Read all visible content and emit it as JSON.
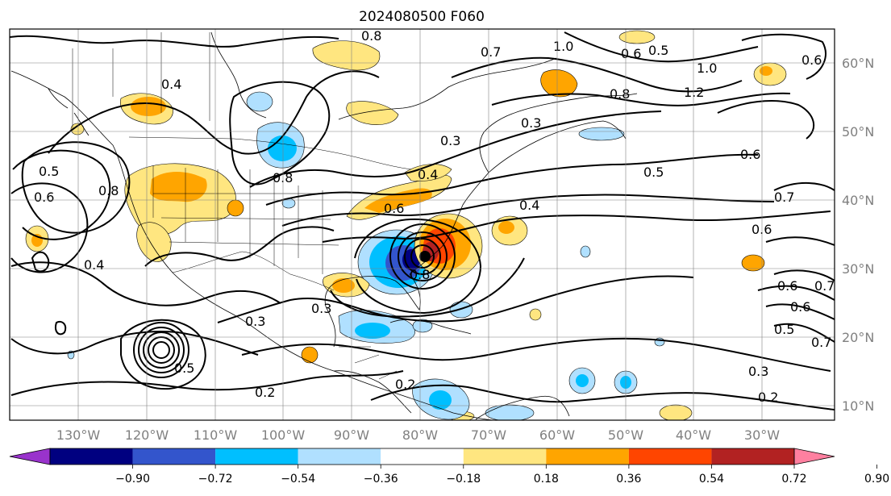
{
  "title": "2024080500 F060",
  "lon_labels": [
    "130°W",
    "120°W",
    "110°W",
    "100°W",
    "90°W",
    "80°W",
    "70°W",
    "60°W",
    "50°W",
    "40°W",
    "30°W"
  ],
  "lat_labels": [
    "60°N",
    "50°N",
    "40°N",
    "30°N",
    "20°N",
    "10°N"
  ],
  "colorbar": {
    "ticks": [
      "−0.90",
      "−0.72",
      "−0.54",
      "−0.36",
      "−0.18",
      "0.18",
      "0.36",
      "0.54",
      "0.72",
      "0.90"
    ],
    "colors": [
      "#9933cc",
      "#000080",
      "#3355cc",
      "#00bfff",
      "#b0e0ff",
      "#ffffff",
      "#ffe680",
      "#ffa500",
      "#ff4500",
      "#b22222",
      "#ff80a0"
    ]
  },
  "contour_labels": [
    "0.8",
    "1.0",
    "0.7",
    "0.5",
    "0.6",
    "1.0",
    "1.2",
    "0.4",
    "0.8",
    "0.3",
    "0.6",
    "0.5",
    "0.4",
    "0.8",
    "0.6",
    "0.5",
    "0.4",
    "0.6",
    "0.8",
    "0.4",
    "0.3",
    "0.3",
    "0.8",
    "0.2",
    "0.3",
    "0.2",
    "0.5",
    "0.6",
    "0.7",
    "0.6",
    "0.6",
    "0.7",
    "0.3",
    "0.2",
    "0.5",
    "0.6",
    "0.7"
  ]
}
